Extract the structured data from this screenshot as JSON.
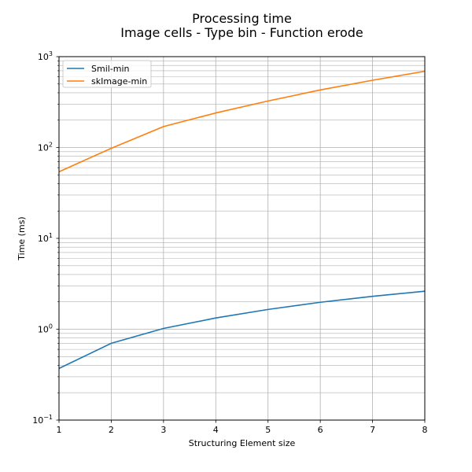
{
  "chart_data": {
    "type": "line",
    "title": "Processing time",
    "subtitle": "Image cells - Type bin - Function erode",
    "xlabel": "Structuring Element size",
    "ylabel": "Time (ms)",
    "x": [
      1,
      2,
      3,
      4,
      5,
      6,
      7,
      8
    ],
    "xlim": [
      1,
      8
    ],
    "ylim": [
      0.1,
      1000
    ],
    "yscale": "log",
    "x_ticks": [
      "1",
      "2",
      "3",
      "4",
      "5",
      "6",
      "7",
      "8"
    ],
    "y_ticks": [
      {
        "base": "10",
        "exp": "−1",
        "value": 0.1
      },
      {
        "base": "10",
        "exp": "0",
        "value": 1
      },
      {
        "base": "10",
        "exp": "1",
        "value": 10
      },
      {
        "base": "10",
        "exp": "2",
        "value": 100
      },
      {
        "base": "10",
        "exp": "3",
        "value": 1000
      }
    ],
    "grid": true,
    "legend_position": "upper-left",
    "series": [
      {
        "name": "Smil-min",
        "color": "#1f77b4",
        "values": [
          0.37,
          0.7,
          1.02,
          1.33,
          1.65,
          1.98,
          2.3,
          2.62
        ]
      },
      {
        "name": "skImage-min",
        "color": "#ff7f0e",
        "values": [
          54,
          98,
          170,
          240,
          325,
          430,
          550,
          690
        ]
      }
    ]
  }
}
